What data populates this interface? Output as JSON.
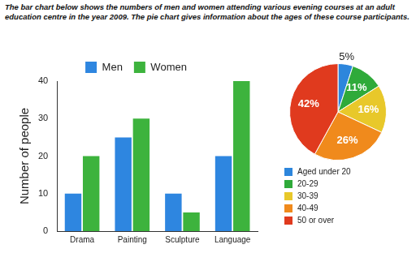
{
  "caption": "The bar chart below shows the numbers of men and women attending various evening courses at an adult education centre in the year 2009. The pie chart gives information about the ages of these course participants.",
  "chart_data": [
    {
      "type": "bar",
      "categories": [
        "Drama",
        "Painting",
        "Sculpture",
        "Language"
      ],
      "series": [
        {
          "name": "Men",
          "color": "#2e86e0",
          "values": [
            10,
            25,
            10,
            20
          ]
        },
        {
          "name": "Women",
          "color": "#3db33d",
          "values": [
            20,
            30,
            5,
            40
          ]
        }
      ],
      "y_label": "Number of people",
      "ylim": [
        0,
        40
      ],
      "yticks": [
        0,
        10,
        20,
        30,
        40
      ],
      "grid": false,
      "legend": "top"
    },
    {
      "type": "pie",
      "categories": [
        "Aged under 20",
        "20-29",
        "30-39",
        "40-49",
        "50 or over"
      ],
      "values": [
        5,
        11,
        16,
        26,
        42
      ],
      "value_labels": [
        "5%",
        "11%",
        "16%",
        "26%",
        "42%"
      ],
      "colors": [
        "#2d86dc",
        "#2faa3a",
        "#e8c82a",
        "#f08a1c",
        "#e03a1e"
      ],
      "data_labels": true,
      "legend": "bottom"
    }
  ]
}
